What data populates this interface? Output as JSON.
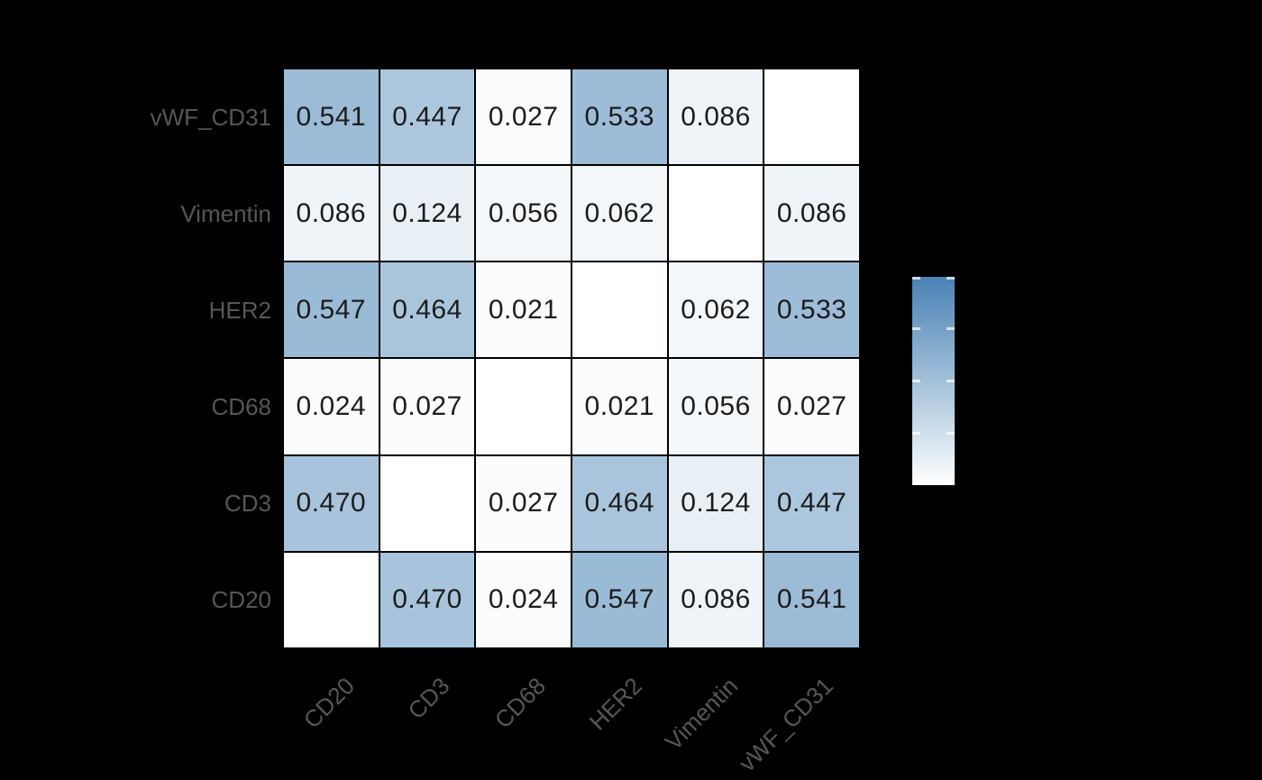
{
  "figure": {
    "background_color": "#000000",
    "grid_line_color": "#000000",
    "axis_label_color": "#56575a",
    "cell_text_color": "#1c1c1c"
  },
  "chart_data": {
    "type": "heatmap",
    "title": "",
    "xlabel": "",
    "ylabel": "",
    "x_categories": [
      "CD20",
      "CD3",
      "CD68",
      "HER2",
      "Vimentin",
      "vWF_CD31"
    ],
    "y_categories_top_to_bottom": [
      "vWF_CD31",
      "Vimentin",
      "HER2",
      "CD68",
      "CD3",
      "CD20"
    ],
    "matrix": [
      {
        "row": "vWF_CD31",
        "values": [
          0.541,
          0.447,
          0.027,
          0.533,
          0.086,
          null
        ],
        "labels": [
          "0.541",
          "0.447",
          "0.027",
          "0.533",
          "0.086",
          ""
        ]
      },
      {
        "row": "Vimentin",
        "values": [
          0.086,
          0.124,
          0.056,
          0.062,
          null,
          0.086
        ],
        "labels": [
          "0.086",
          "0.124",
          "0.056",
          "0.062",
          "",
          "0.086"
        ]
      },
      {
        "row": "HER2",
        "values": [
          0.547,
          0.464,
          0.021,
          null,
          0.062,
          0.533
        ],
        "labels": [
          "0.547",
          "0.464",
          "0.021",
          "",
          "0.062",
          "0.533"
        ]
      },
      {
        "row": "CD68",
        "values": [
          0.024,
          0.027,
          null,
          0.021,
          0.056,
          0.027
        ],
        "labels": [
          "0.024",
          "0.027",
          "",
          "0.021",
          "0.056",
          "0.027"
        ]
      },
      {
        "row": "CD3",
        "values": [
          0.47,
          null,
          0.027,
          0.464,
          0.124,
          0.447
        ],
        "labels": [
          "0.470",
          "",
          "0.027",
          "0.464",
          "0.124",
          "0.447"
        ]
      },
      {
        "row": "CD20",
        "values": [
          null,
          0.47,
          0.024,
          0.547,
          0.086,
          0.541
        ],
        "labels": [
          "",
          "0.470",
          "0.024",
          "0.547",
          "0.086",
          "0.541"
        ]
      }
    ],
    "diagonal_cells": "blank-white",
    "colormap": {
      "low_color": "#ffffff",
      "high_color": "#4682b4",
      "vmin": 0,
      "vmax": 1
    },
    "colorbar": {
      "orientation": "vertical",
      "gradient_top_color": "#4a81b5",
      "gradient_bottom_color": "#ffffff",
      "tick_fractions_from_top": [
        0,
        0.25,
        0.5,
        0.75,
        1
      ],
      "tick_color": "rgba(255,255,255,0.72)",
      "tick_labels_visible": false
    },
    "legend_position": "right",
    "grid": false
  }
}
